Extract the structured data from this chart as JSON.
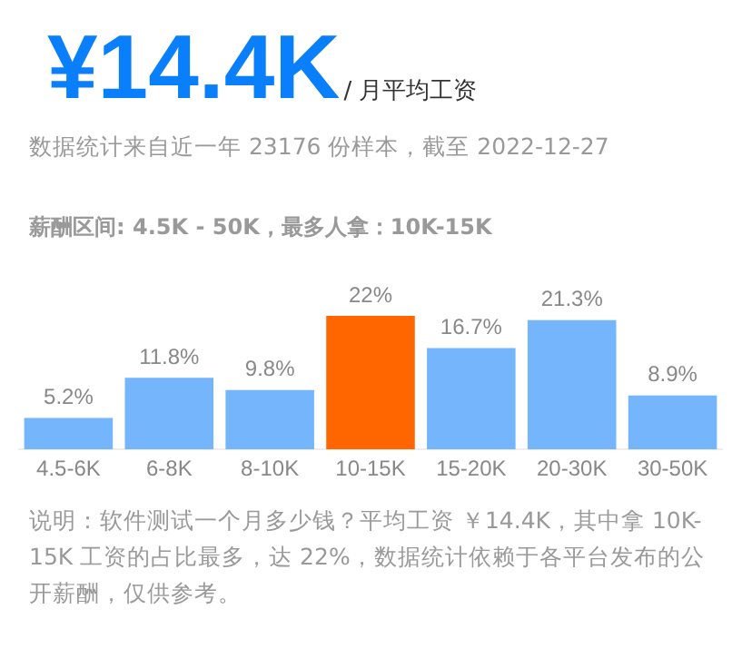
{
  "chart_data": {
    "type": "bar",
    "title": "¥14.4K",
    "subtitle": "/ 月平均工资",
    "annotations": [
      "数据统计来自近一年 23176 份样本，截至 2022-12-27",
      "薪酬区间: 4.5K - 50K，最多人拿：10K-15K",
      "说明：软件测试一个月多少钱？平均工资 ￥14.4K，其中拿 10K-15K 工资的占比最多，达 22%，数据统计依赖于各平台发布的公开薪酬，仅供参考。"
    ],
    "categories": [
      "4.5-6K",
      "6-8K",
      "8-10K",
      "10-15K",
      "15-20K",
      "20-30K",
      "30-50K"
    ],
    "values": [
      5.2,
      11.8,
      9.8,
      22,
      16.7,
      21.3,
      8.9
    ],
    "value_labels": [
      "5.2%",
      "11.8%",
      "9.8%",
      "22%",
      "16.7%",
      "21.3%",
      "8.9%"
    ],
    "colors": [
      "#75b5fb",
      "#75b5fb",
      "#75b5fb",
      "#ff6600",
      "#75b5fb",
      "#75b5fb",
      "#75b5fb"
    ],
    "grid": false,
    "legend": false,
    "tick_labels": "x"
  }
}
